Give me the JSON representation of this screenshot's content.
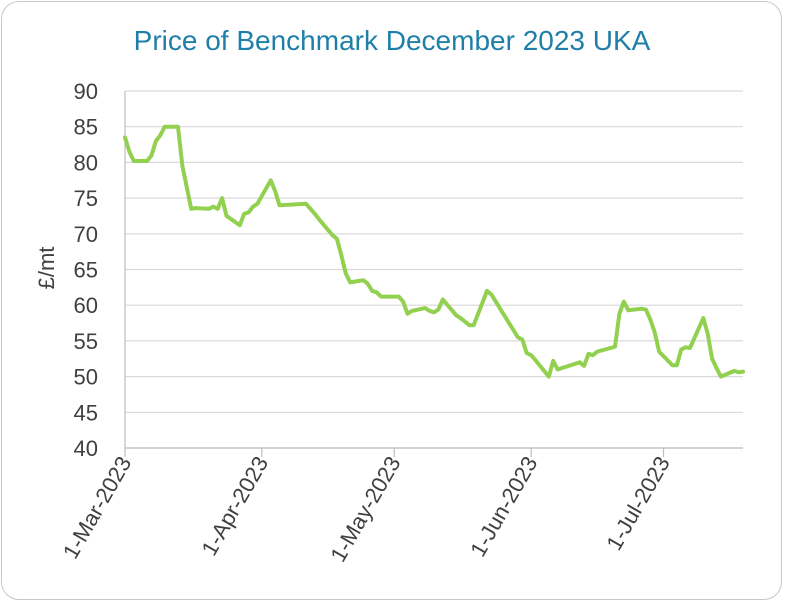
{
  "chart_data": {
    "type": "line",
    "title": "Price of Benchmark December 2023 UKA",
    "xlabel": "",
    "ylabel": "£/mt",
    "ylim": [
      40,
      90
    ],
    "yticks": [
      40,
      45,
      50,
      55,
      60,
      65,
      70,
      75,
      80,
      85,
      90
    ],
    "xlim": [
      "2023-03-01",
      "2023-07-19"
    ],
    "xticks": [
      {
        "date": "2023-03-01",
        "label": "1-Mar-2023"
      },
      {
        "date": "2023-04-01",
        "label": "1-Apr-2023"
      },
      {
        "date": "2023-05-01",
        "label": "1-May-2023"
      },
      {
        "date": "2023-06-01",
        "label": "1-Jun-2023"
      },
      {
        "date": "2023-07-01",
        "label": "1-Jul-2023"
      }
    ],
    "grid": true,
    "colors": {
      "line": "#92d050",
      "title": "#1f7fa8",
      "grid": "#d9d9d9",
      "axis": "#bfbfbf",
      "text": "#404040"
    },
    "series": [
      {
        "name": "Dec-23 UKA",
        "points": [
          [
            "2023-03-01",
            83.5
          ],
          [
            "2023-03-02",
            81.5
          ],
          [
            "2023-03-03",
            80.2
          ],
          [
            "2023-03-06",
            80.2
          ],
          [
            "2023-03-07",
            81.0
          ],
          [
            "2023-03-08",
            83.0
          ],
          [
            "2023-03-09",
            83.8
          ],
          [
            "2023-03-10",
            85.0
          ],
          [
            "2023-03-13",
            85.0
          ],
          [
            "2023-03-14",
            79.5
          ],
          [
            "2023-03-15",
            76.5
          ],
          [
            "2023-03-16",
            73.5
          ],
          [
            "2023-03-17",
            73.6
          ],
          [
            "2023-03-20",
            73.5
          ],
          [
            "2023-03-21",
            73.8
          ],
          [
            "2023-03-22",
            73.5
          ],
          [
            "2023-03-23",
            75.0
          ],
          [
            "2023-03-24",
            72.5
          ],
          [
            "2023-03-27",
            71.2
          ],
          [
            "2023-03-28",
            72.8
          ],
          [
            "2023-03-29",
            73.0
          ],
          [
            "2023-03-30",
            73.8
          ],
          [
            "2023-03-31",
            74.2
          ],
          [
            "2023-04-03",
            77.5
          ],
          [
            "2023-04-04",
            76.0
          ],
          [
            "2023-04-05",
            74.0
          ],
          [
            "2023-04-11",
            74.2
          ],
          [
            "2023-04-12",
            73.5
          ],
          [
            "2023-04-13",
            72.8
          ],
          [
            "2023-04-14",
            72.0
          ],
          [
            "2023-04-17",
            69.8
          ],
          [
            "2023-04-18",
            69.3
          ],
          [
            "2023-04-19",
            67.0
          ],
          [
            "2023-04-20",
            64.5
          ],
          [
            "2023-04-21",
            63.2
          ],
          [
            "2023-04-24",
            63.5
          ],
          [
            "2023-04-25",
            63.0
          ],
          [
            "2023-04-26",
            62.0
          ],
          [
            "2023-04-27",
            61.8
          ],
          [
            "2023-04-28",
            61.2
          ],
          [
            "2023-05-02",
            61.2
          ],
          [
            "2023-05-03",
            60.5
          ],
          [
            "2023-05-04",
            58.8
          ],
          [
            "2023-05-05",
            59.2
          ],
          [
            "2023-05-08",
            59.6
          ],
          [
            "2023-05-09",
            59.2
          ],
          [
            "2023-05-10",
            59.0
          ],
          [
            "2023-05-11",
            59.4
          ],
          [
            "2023-05-12",
            60.8
          ],
          [
            "2023-05-15",
            58.6
          ],
          [
            "2023-05-16",
            58.2
          ],
          [
            "2023-05-17",
            57.7
          ],
          [
            "2023-05-18",
            57.2
          ],
          [
            "2023-05-19",
            57.2
          ],
          [
            "2023-05-22",
            62.0
          ],
          [
            "2023-05-23",
            61.5
          ],
          [
            "2023-05-24",
            60.5
          ],
          [
            "2023-05-25",
            59.5
          ],
          [
            "2023-05-26",
            58.5
          ],
          [
            "2023-05-29",
            55.5
          ],
          [
            "2023-05-30",
            55.2
          ],
          [
            "2023-05-31",
            53.3
          ],
          [
            "2023-06-01",
            53.0
          ],
          [
            "2023-06-02",
            52.3
          ],
          [
            "2023-06-05",
            50.0
          ],
          [
            "2023-06-06",
            52.2
          ],
          [
            "2023-06-07",
            51.0
          ],
          [
            "2023-06-08",
            51.2
          ],
          [
            "2023-06-09",
            51.4
          ],
          [
            "2023-06-12",
            52.0
          ],
          [
            "2023-06-13",
            51.5
          ],
          [
            "2023-06-14",
            53.2
          ],
          [
            "2023-06-15",
            53.0
          ],
          [
            "2023-06-16",
            53.5
          ],
          [
            "2023-06-19",
            54.0
          ],
          [
            "2023-06-20",
            54.2
          ],
          [
            "2023-06-21",
            58.8
          ],
          [
            "2023-06-22",
            60.5
          ],
          [
            "2023-06-23",
            59.3
          ],
          [
            "2023-06-26",
            59.5
          ],
          [
            "2023-06-27",
            59.4
          ],
          [
            "2023-06-28",
            58.0
          ],
          [
            "2023-06-29",
            56.2
          ],
          [
            "2023-06-30",
            53.5
          ],
          [
            "2023-07-03",
            51.6
          ],
          [
            "2023-07-04",
            51.6
          ],
          [
            "2023-07-05",
            53.8
          ],
          [
            "2023-07-06",
            54.1
          ],
          [
            "2023-07-07",
            54.0
          ],
          [
            "2023-07-10",
            58.2
          ],
          [
            "2023-07-11",
            56.0
          ],
          [
            "2023-07-12",
            52.5
          ],
          [
            "2023-07-13",
            51.2
          ],
          [
            "2023-07-14",
            50.0
          ],
          [
            "2023-07-17",
            50.8
          ],
          [
            "2023-07-18",
            50.6
          ],
          [
            "2023-07-19",
            50.7
          ]
        ]
      }
    ]
  }
}
